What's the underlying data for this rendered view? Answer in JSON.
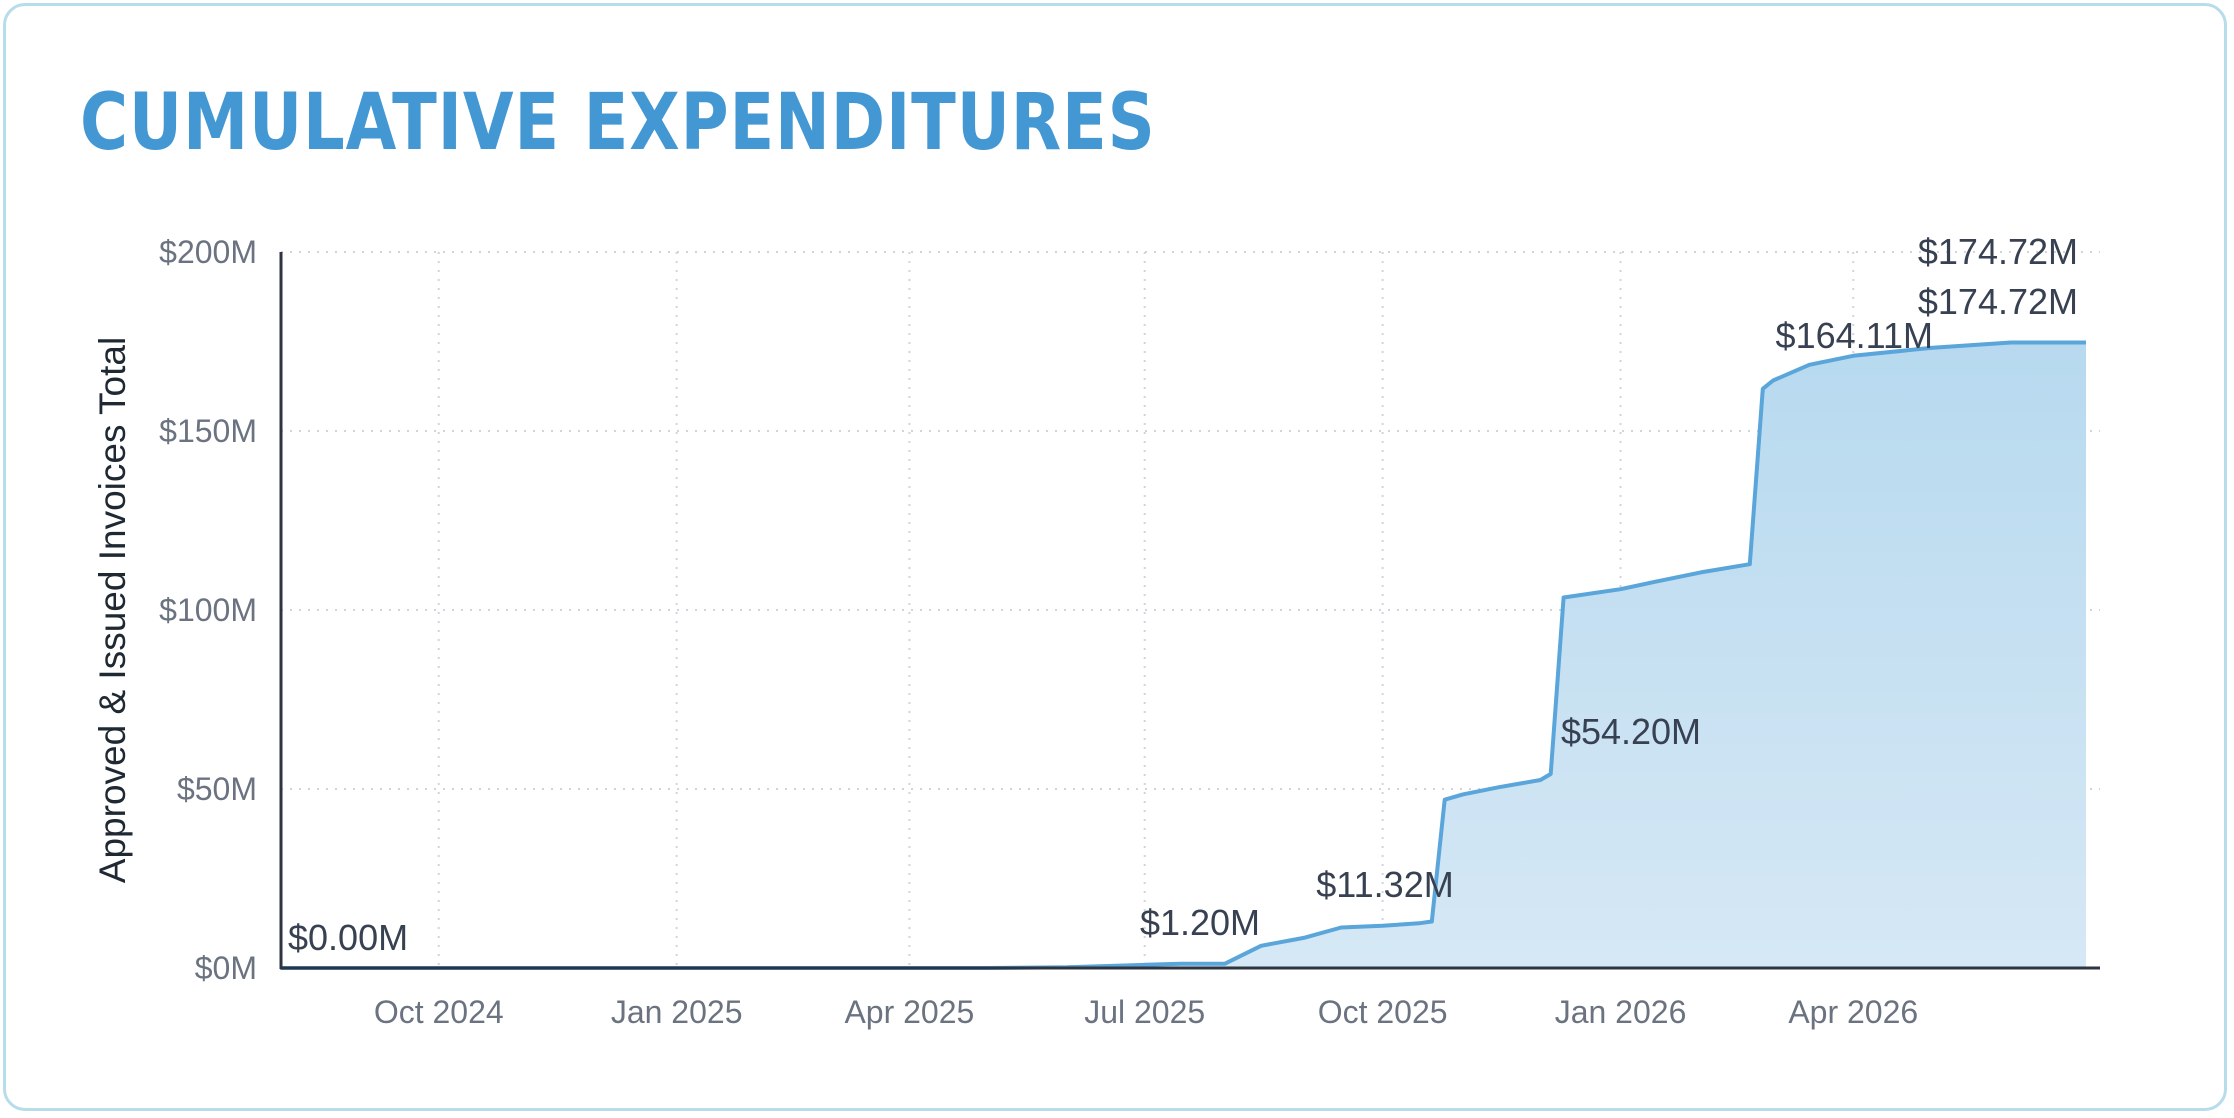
{
  "card": {
    "border_color": "#b7dcea"
  },
  "title": "CUMULATIVE EXPENDITURES",
  "colors": {
    "title": "#4398d3",
    "line": "#5aa5da",
    "fill_top": "#b7d9ef",
    "fill_bottom": "#d6e8f5",
    "grid": "#d1d5db",
    "axis": "#2d3540"
  },
  "chart_data": {
    "type": "area",
    "title": "CUMULATIVE EXPENDITURES",
    "xlabel": "",
    "ylabel": "Approved & Issued Invoices Total",
    "y_ticks": [
      "$0M",
      "$50M",
      "$100M",
      "$150M",
      "$200M"
    ],
    "ylim": [
      0,
      200
    ],
    "y_unit": "$M",
    "x_ticks": [
      "Oct 2024",
      "Jan 2025",
      "Apr 2025",
      "Jul 2025",
      "Oct 2025",
      "Jan 2026",
      "Apr 2026"
    ],
    "x_tick_dates": [
      "2024-10-01",
      "2025-01-01",
      "2025-04-01",
      "2025-07-01",
      "2025-10-01",
      "2026-01-01",
      "2026-04-01"
    ],
    "xlim": [
      "2024-08-01",
      "2026-06-30"
    ],
    "grid": true,
    "series": [
      {
        "x": [
          "2024-08-01",
          "2025-05-01",
          "2025-06-01",
          "2025-07-01",
          "2025-07-15",
          "2025-08-01",
          "2025-08-15",
          "2025-09-01",
          "2025-09-15",
          "2025-10-01",
          "2025-10-15",
          "2025-10-20",
          "2025-10-25",
          "2025-11-01",
          "2025-11-15",
          "2025-12-01",
          "2025-12-05",
          "2025-12-10",
          "2026-01-01",
          "2026-01-15",
          "2026-02-01",
          "2026-02-20",
          "2026-02-25",
          "2026-03-01",
          "2026-03-15",
          "2026-04-01",
          "2026-05-01",
          "2026-06-01",
          "2026-06-30"
        ],
        "values": [
          0.0,
          0.0,
          0.2,
          0.9,
          1.2,
          1.2,
          6.2,
          8.5,
          11.32,
          11.8,
          12.5,
          13.0,
          47.0,
          48.5,
          50.5,
          52.5,
          54.2,
          103.5,
          105.8,
          108.0,
          110.5,
          112.8,
          161.8,
          164.11,
          168.5,
          171.0,
          173.2,
          174.72,
          174.72
        ]
      }
    ],
    "annotations": [
      {
        "text": "$0.00M",
        "x": "2024-08-01",
        "y": 0.0
      },
      {
        "text": "$1.20M",
        "x": "2025-07-15",
        "y": 1.2
      },
      {
        "text": "$11.32M",
        "x": "2025-09-15",
        "y": 11.32
      },
      {
        "text": "$54.20M",
        "x": "2025-12-05",
        "y": 54.2
      },
      {
        "text": "$164.11M",
        "x": "2026-03-01",
        "y": 164.11
      },
      {
        "text": "$174.72M",
        "x": "2026-06-01",
        "y": 174.72
      },
      {
        "text": "$174.72M",
        "x": "2026-06-30",
        "y": 174.72
      }
    ]
  }
}
